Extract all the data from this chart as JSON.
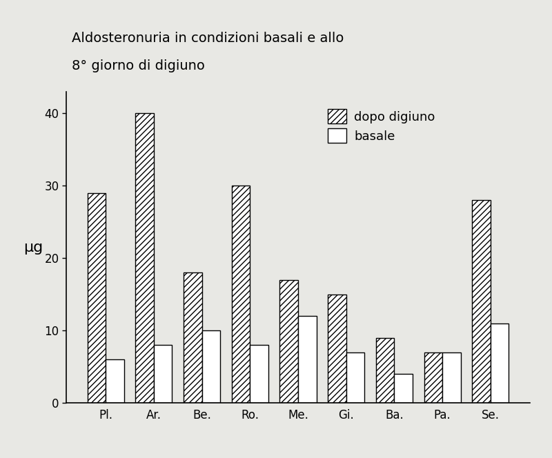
{
  "title_line1": "Aldosteronuria in condizioni basali e allo",
  "title_line2": "8° giorno di digiuno",
  "ylabel": "μg",
  "categories": [
    "Pl.",
    "Ar.",
    "Be.",
    "Ro.",
    "Me.",
    "Gi.",
    "Ba.",
    "Pa.",
    "Se."
  ],
  "dopo_digiuno": [
    29,
    40,
    18,
    30,
    17,
    15,
    9,
    7,
    28
  ],
  "basale": [
    6,
    8,
    10,
    8,
    12,
    7,
    4,
    7,
    11
  ],
  "ylim": [
    0,
    43
  ],
  "yticks": [
    0,
    10,
    20,
    30,
    40
  ],
  "legend_labels": [
    "dopo digiuno",
    "basale"
  ],
  "bar_width": 0.38,
  "hatch_dopo": "////",
  "hatch_basale": "",
  "background_color": "#e8e8e4",
  "plot_bg_color": "#e8e8e4",
  "bar_edge_color": "#000000",
  "bar_fill_dopo": "#ffffff",
  "bar_fill_basale": "#ffffff",
  "title_fontsize": 14,
  "axis_fontsize": 14,
  "tick_fontsize": 12,
  "legend_fontsize": 13
}
